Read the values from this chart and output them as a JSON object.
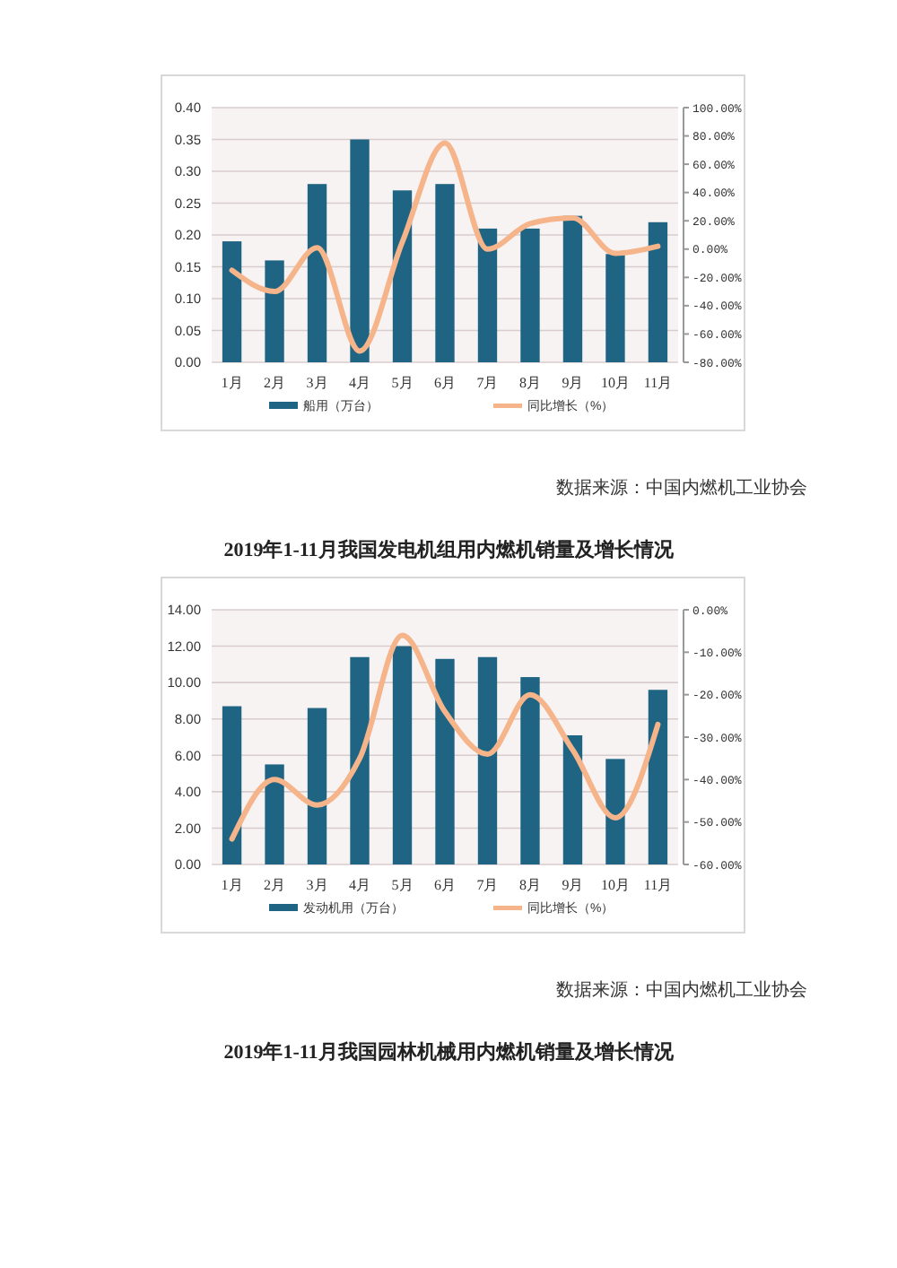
{
  "chart_data": [
    {
      "type": "bar",
      "categories": [
        "1月",
        "2月",
        "3月",
        "4月",
        "5月",
        "6月",
        "7月",
        "8月",
        "9月",
        "10月",
        "11月"
      ],
      "series": [
        {
          "name": "船用（万台）",
          "color": "#1f6583",
          "values": [
            0.19,
            0.16,
            0.28,
            0.35,
            0.27,
            0.28,
            0.21,
            0.21,
            0.23,
            0.17,
            0.22
          ]
        },
        {
          "name": "同比增长（%）",
          "type": "line",
          "axis": "y2",
          "color": "#f5b48a",
          "values": [
            -15,
            -30,
            1,
            -72,
            5,
            75,
            0,
            18,
            22,
            -3,
            2
          ]
        }
      ],
      "ylim": [
        0,
        0.4
      ],
      "yticks": [
        {
          "value": 0,
          "label": "0.00"
        },
        {
          "value": 0.05,
          "label": "0.05"
        },
        {
          "value": 0.1,
          "label": "0.10"
        },
        {
          "value": 0.15,
          "label": "0.15"
        },
        {
          "value": 0.2,
          "label": "0.20"
        },
        {
          "value": 0.25,
          "label": "0.25"
        },
        {
          "value": 0.3,
          "label": "0.30"
        },
        {
          "value": 0.35,
          "label": "0.35"
        },
        {
          "value": 0.4,
          "label": "0.40"
        }
      ],
      "y2lim": [
        -80,
        100
      ],
      "y2ticks": [
        {
          "value": -80,
          "label": "-80.00%"
        },
        {
          "value": -60,
          "label": "-60.00%"
        },
        {
          "value": -40,
          "label": "-40.00%"
        },
        {
          "value": -20,
          "label": "-20.00%"
        },
        {
          "value": 0,
          "label": "0.00%"
        },
        {
          "value": 20,
          "label": "20.00%"
        },
        {
          "value": 40,
          "label": "40.00%"
        },
        {
          "value": 60,
          "label": "60.00%"
        },
        {
          "value": 80,
          "label": "80.00%"
        },
        {
          "value": 100,
          "label": "100.00%"
        }
      ],
      "grid": "y",
      "legend": "bottom",
      "annotations": [
        "数据来源：中国内燃机工业协会"
      ]
    },
    {
      "type": "bar",
      "title": "2019年1-11月我国发电机组用内燃机销量及增长情况",
      "categories": [
        "1月",
        "2月",
        "3月",
        "4月",
        "5月",
        "6月",
        "7月",
        "8月",
        "9月",
        "10月",
        "11月"
      ],
      "series": [
        {
          "name": "发动机用（万台）",
          "color": "#1f6583",
          "values": [
            8.7,
            5.5,
            8.6,
            11.4,
            12.0,
            11.3,
            11.4,
            10.3,
            7.1,
            5.8,
            9.6
          ]
        },
        {
          "name": "同比增长（%）",
          "type": "line",
          "axis": "y2",
          "color": "#f5b48a",
          "values": [
            -54,
            -40,
            -46,
            -35,
            -6,
            -24,
            -34,
            -20,
            -33,
            -49,
            -27
          ]
        }
      ],
      "ylim": [
        0,
        14
      ],
      "yticks": [
        {
          "value": 0,
          "label": "0.00"
        },
        {
          "value": 2,
          "label": "2.00"
        },
        {
          "value": 4,
          "label": "4.00"
        },
        {
          "value": 6,
          "label": "6.00"
        },
        {
          "value": 8,
          "label": "8.00"
        },
        {
          "value": 10,
          "label": "10.00"
        },
        {
          "value": 12,
          "label": "12.00"
        },
        {
          "value": 14,
          "label": "14.00"
        }
      ],
      "y2lim": [
        -60,
        0
      ],
      "y2ticks": [
        {
          "value": -60,
          "label": "-60.00%"
        },
        {
          "value": -50,
          "label": "-50.00%"
        },
        {
          "value": -40,
          "label": "-40.00%"
        },
        {
          "value": -30,
          "label": "-30.00%"
        },
        {
          "value": -20,
          "label": "-20.00%"
        },
        {
          "value": -10,
          "label": "-10.00%"
        },
        {
          "value": 0,
          "label": "0.00%"
        }
      ],
      "grid": "y",
      "legend": "bottom",
      "annotations": [
        "数据来源：中国内燃机工业协会",
        "2019年1-11月我国园林机械用内燃机销量及增长情况"
      ]
    }
  ]
}
